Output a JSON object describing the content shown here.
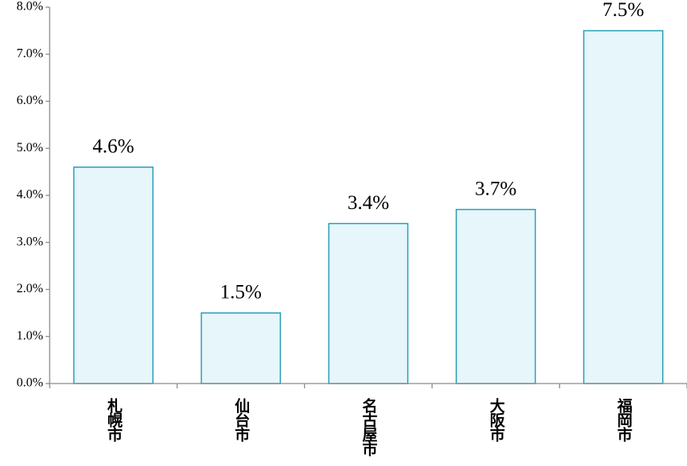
{
  "chart_data": {
    "type": "bar",
    "categories": [
      "札幌市",
      "仙台市",
      "名古屋市",
      "大阪市",
      "福岡市"
    ],
    "values": [
      4.6,
      1.5,
      3.4,
      3.7,
      7.5
    ],
    "value_labels": [
      "4.6%",
      "1.5%",
      "3.4%",
      "3.7%",
      "7.5%"
    ],
    "color": "#e6f6fb",
    "edge_color": "#2aa0b6",
    "ylim": [
      0,
      8
    ],
    "yticks": [
      {
        "value": 0,
        "label": "0.0%"
      },
      {
        "value": 1,
        "label": "1.0%"
      },
      {
        "value": 2,
        "label": "2.0%"
      },
      {
        "value": 3,
        "label": "3.0%"
      },
      {
        "value": 4,
        "label": "4.0%"
      },
      {
        "value": 5,
        "label": "5.0%"
      },
      {
        "value": 6,
        "label": "6.0%"
      },
      {
        "value": 7,
        "label": "7.0%"
      },
      {
        "value": 8,
        "label": "8.0%"
      }
    ],
    "grid": false
  }
}
